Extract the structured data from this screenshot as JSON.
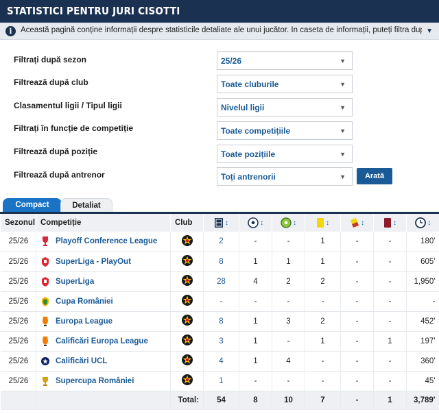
{
  "header": {
    "title": "Statistici pentru Juri Cisotti"
  },
  "info": {
    "text": "Această pagină conține informații despre statisticile detaliate ale unui jucător. În caseta de informații, puteți filtra după perioadă, club, tip de l..."
  },
  "filters": [
    {
      "label": "Filtrați după sezon",
      "value": "25/26"
    },
    {
      "label": "Filtrează după club",
      "value": "Toate cluburile"
    },
    {
      "label": "Clasamentul ligii / Tipul ligii",
      "value": "Nivelul ligii"
    },
    {
      "label": "Filtrați în funcție de competiție",
      "value": "Toate competițiile"
    },
    {
      "label": "Filtrează după poziție",
      "value": "Toate pozițiile"
    },
    {
      "label": "Filtrează după antrenor",
      "value": "Toți antrenorii"
    }
  ],
  "button_label": "Arată",
  "tabs": [
    "Compact",
    "Detaliat"
  ],
  "columns": {
    "season": "Sezonul",
    "competition": "Competiție",
    "club": "Club",
    "sort": "↕"
  },
  "rows": [
    {
      "season": "25/26",
      "competition": "Playoff Conference League",
      "apps": "2",
      "goals": "-",
      "assists": "-",
      "yellow": "1",
      "second_yellow": "-",
      "red": "-",
      "minutes": "180'",
      "comp_icon": "trophy-red"
    },
    {
      "season": "25/26",
      "competition": "SuperLiga - PlayOut",
      "apps": "8",
      "goals": "1",
      "assists": "1",
      "yellow": "1",
      "second_yellow": "-",
      "red": "-",
      "minutes": "605'",
      "comp_icon": "superliga-red"
    },
    {
      "season": "25/26",
      "competition": "SuperLiga",
      "apps": "28",
      "goals": "4",
      "assists": "2",
      "yellow": "2",
      "second_yellow": "-",
      "red": "-",
      "minutes": "1,950'",
      "comp_icon": "superliga-red"
    },
    {
      "season": "25/26",
      "competition": "Cupa României",
      "apps": "-",
      "goals": "-",
      "assists": "-",
      "yellow": "-",
      "second_yellow": "-",
      "red": "-",
      "minutes": "-",
      "comp_icon": "cup-green"
    },
    {
      "season": "25/26",
      "competition": "Europa League",
      "apps": "8",
      "goals": "1",
      "assists": "3",
      "yellow": "2",
      "second_yellow": "-",
      "red": "-",
      "minutes": "452'",
      "comp_icon": "europa-league"
    },
    {
      "season": "25/26",
      "competition": "Calificări Europa League",
      "apps": "3",
      "goals": "1",
      "assists": "-",
      "yellow": "1",
      "second_yellow": "-",
      "red": "1",
      "minutes": "197'",
      "comp_icon": "europa-league"
    },
    {
      "season": "25/26",
      "competition": "Calificări UCL",
      "apps": "4",
      "goals": "1",
      "assists": "4",
      "yellow": "-",
      "second_yellow": "-",
      "red": "-",
      "minutes": "360'",
      "comp_icon": "ucl-star-ball"
    },
    {
      "season": "25/26",
      "competition": "Supercupa României",
      "apps": "1",
      "goals": "-",
      "assists": "-",
      "yellow": "-",
      "second_yellow": "-",
      "red": "-",
      "minutes": "45'",
      "comp_icon": "supercup-gold"
    }
  ],
  "totals": {
    "label": "Total:",
    "apps": "54",
    "goals": "8",
    "assists": "10",
    "yellow": "7",
    "second_yellow": "-",
    "red": "1",
    "minutes": "3,789'"
  },
  "colors": {
    "header_bg": "#1a3151",
    "link": "#1a5a96",
    "tab_active": "#1a73c4",
    "yellow_card": "#f5d60c",
    "red_card": "#8c1c2b"
  }
}
